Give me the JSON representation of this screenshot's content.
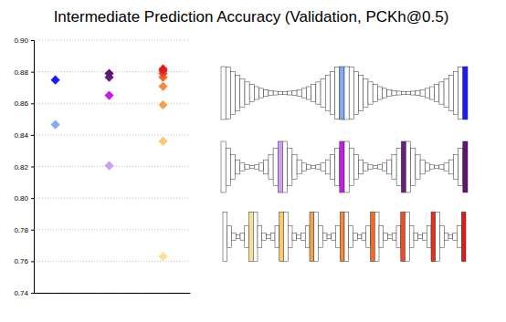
{
  "chart_data": {
    "type": "scatter",
    "title": "Intermediate Prediction Accuracy (Validation, PCKh@0.5)",
    "x": [
      1,
      1,
      2,
      2,
      2,
      2,
      3,
      3,
      3,
      3,
      3,
      3,
      3,
      3
    ],
    "values": [
      0.8465,
      0.8748,
      0.8205,
      0.865,
      0.8765,
      0.8789,
      0.763,
      0.836,
      0.859,
      0.8707,
      0.8765,
      0.8789,
      0.8806,
      0.8817
    ],
    "colors": [
      "#84aaf2",
      "#1a1aff",
      "#d49cf0",
      "#c41ee6",
      "#6a1f80",
      "#5e1670",
      "#fbe08f",
      "#fdc86b",
      "#f9a04a",
      "#f48a3a",
      "#f26a2a",
      "#ef4a23",
      "#ea2e1e",
      "#e0191a"
    ],
    "marker": "diamond",
    "xlim": [
      0.6,
      3.5
    ],
    "ylim": [
      0.74,
      0.9
    ],
    "yticks": [
      0.74,
      0.76,
      0.78,
      {
        "value": 0.8,
        "label": "0.80"
      },
      0.82,
      0.84,
      0.86,
      0.88,
      {
        "value": 0.9,
        "label": "0.90"
      }
    ],
    "grid": true,
    "tick_labels": "y"
  }
}
